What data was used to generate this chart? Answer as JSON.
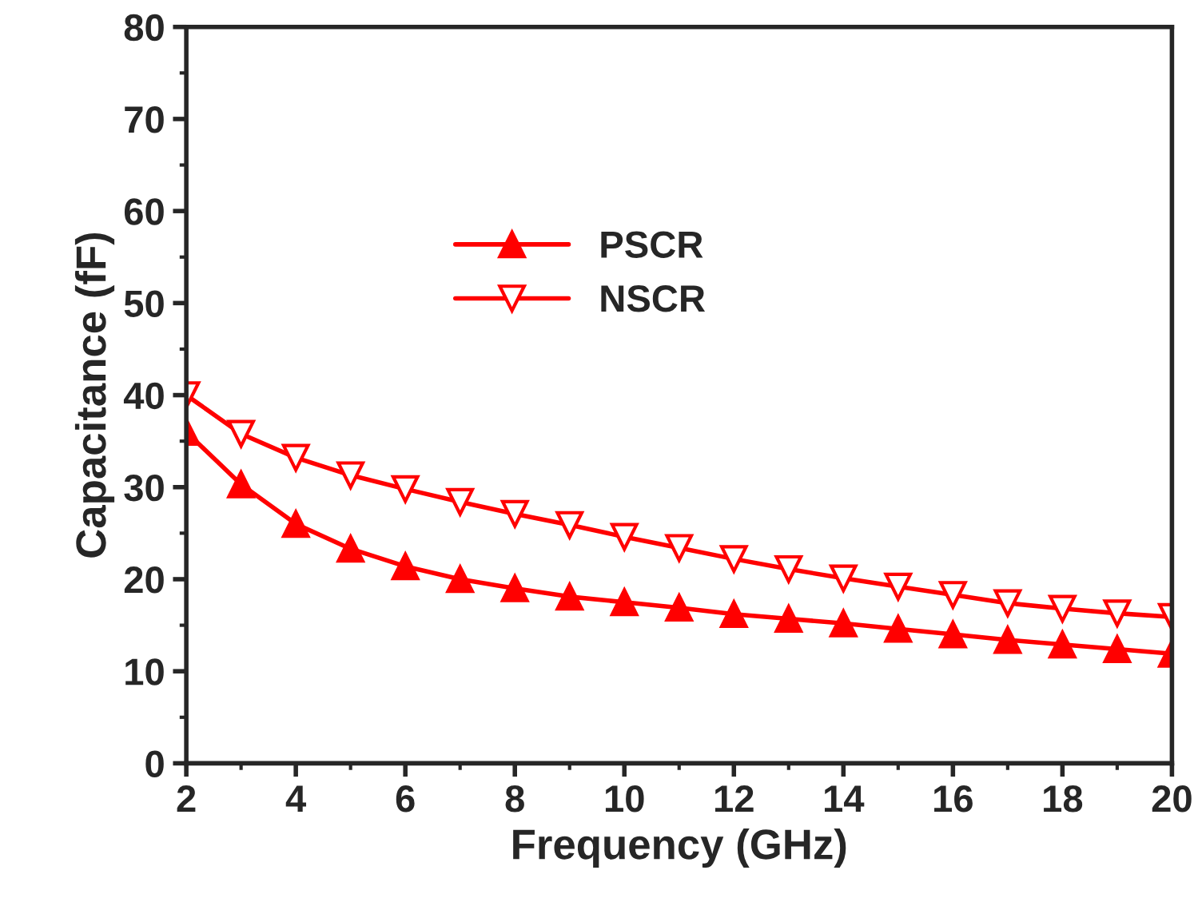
{
  "chart_data": {
    "type": "line",
    "xlabel": "Frequency (GHz)",
    "ylabel": "Capacitance (fF)",
    "x": [
      2,
      3,
      4,
      5,
      6,
      7,
      8,
      9,
      10,
      11,
      12,
      13,
      14,
      15,
      16,
      17,
      18,
      19,
      20
    ],
    "series": [
      {
        "name": "PSCR",
        "color": "#ff0000",
        "marker": "triangle",
        "values": [
          36,
          30.3,
          26,
          23.3,
          21.4,
          20,
          19,
          18.1,
          17.5,
          16.9,
          16.2,
          15.7,
          15.2,
          14.6,
          14,
          13.4,
          12.9,
          12.4,
          11.9
        ]
      },
      {
        "name": "NSCR",
        "color": "#ff0000",
        "marker": "triangle_down_open",
        "values": [
          40,
          35.8,
          33.2,
          31.3,
          29.8,
          28.4,
          27.1,
          25.9,
          24.6,
          23.4,
          22.2,
          21.1,
          20.1,
          19.2,
          18.3,
          17.4,
          16.8,
          16.3,
          15.9
        ]
      }
    ],
    "xlim": [
      2,
      20
    ],
    "xticks": [
      2,
      4,
      6,
      8,
      10,
      12,
      14,
      16,
      18,
      20
    ],
    "ylim": [
      0,
      80
    ],
    "yticks": [
      0,
      10,
      20,
      30,
      40,
      50,
      60,
      70,
      80
    ],
    "grid": false,
    "legend": "top",
    "line_style": "solid"
  }
}
